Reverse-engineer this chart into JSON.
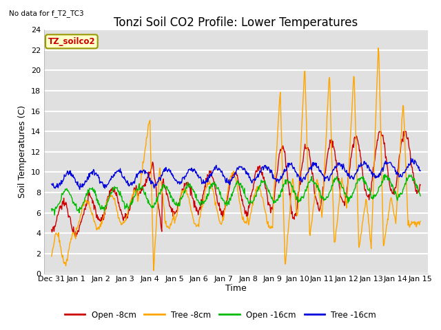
{
  "title": "Tonzi Soil CO2 Profile: Lower Temperatures",
  "subtitle": "No data for f_T2_TC3",
  "ylabel": "Soil Temperatures (C)",
  "xlabel": "Time",
  "legend_label": "TZ_soilco2",
  "ylim": [
    0,
    24
  ],
  "yticks": [
    0,
    2,
    4,
    6,
    8,
    10,
    12,
    14,
    16,
    18,
    20,
    22,
    24
  ],
  "background_color": "#e0e0e0",
  "grid_color": "#ffffff",
  "series": {
    "open_8cm": {
      "color": "#cc0000",
      "label": "Open -8cm"
    },
    "tree_8cm": {
      "color": "#ffa500",
      "label": "Tree -8cm"
    },
    "open_16cm": {
      "color": "#00bb00",
      "label": "Open -16cm"
    },
    "tree_16cm": {
      "color": "#0000dd",
      "label": "Tree -16cm"
    }
  },
  "x_tick_labels": [
    "Dec 31",
    "Jan 1",
    "Jan 2",
    "Jan 3",
    "Jan 4",
    "Jan 5",
    "Jan 6",
    "Jan 7",
    "Jan 8",
    "Jan 9",
    "Jan 10",
    "Jan 11",
    "Jan 12",
    "Jan 13",
    "Jan 14",
    "Jan 15"
  ],
  "title_fontsize": 12,
  "axis_fontsize": 9,
  "tick_fontsize": 8
}
